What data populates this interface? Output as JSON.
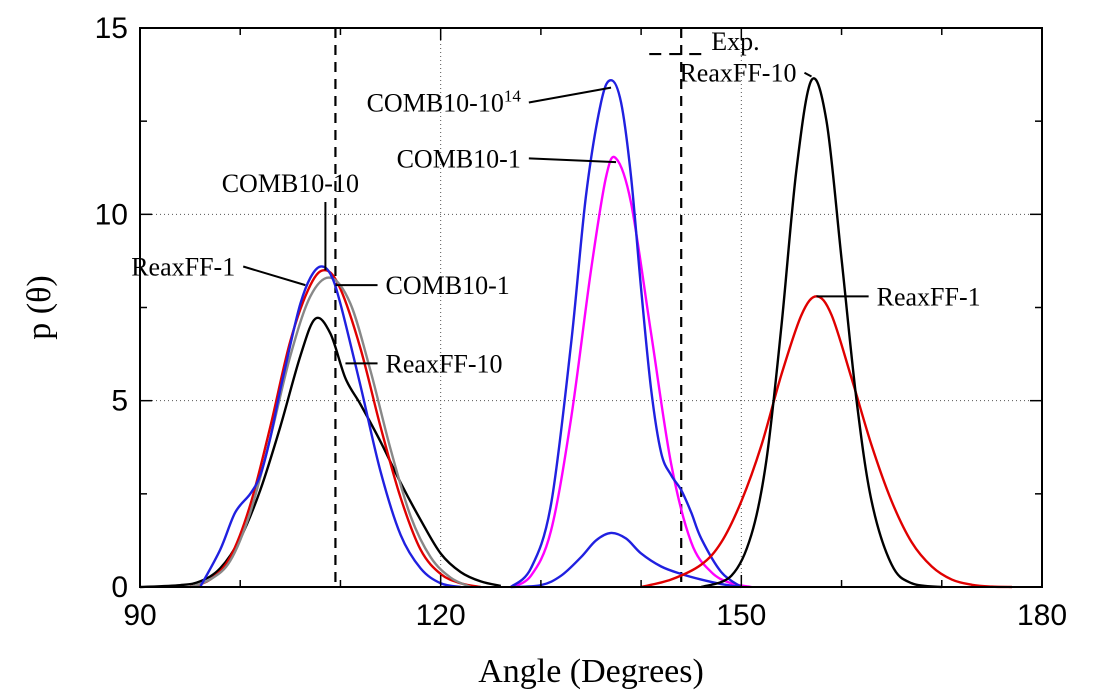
{
  "chart_data": {
    "type": "line",
    "title": "",
    "xlabel": "Angle (Degrees)",
    "ylabel": "p (θ)",
    "xlim": [
      90,
      180
    ],
    "ylim": [
      0,
      15
    ],
    "xticks": [
      90,
      120,
      150,
      180
    ],
    "yticks": [
      0,
      5,
      10,
      15
    ],
    "xtick_labels": [
      "90",
      "120",
      "150",
      "180"
    ],
    "ytick_labels": [
      "0",
      "5",
      "10",
      "15"
    ],
    "grid": true,
    "legend": {
      "placement": "top-right",
      "entries": [
        {
          "label": "Exp.",
          "style": "dashed",
          "color": "#000000"
        }
      ]
    },
    "reference_lines": [
      {
        "name": "Exp.",
        "x": 109.5
      },
      {
        "name": "Exp.",
        "x": 144
      }
    ],
    "series": [
      {
        "group": "ReaxFF-10",
        "color": "#000000",
        "x": [
          90,
          94,
          96,
          98,
          100,
          102,
          104,
          106,
          107.5,
          109,
          110.5,
          112,
          114,
          116,
          118,
          120,
          122,
          124,
          126
        ],
        "y": [
          0,
          0.05,
          0.15,
          0.5,
          1.3,
          2.6,
          4.3,
          6.2,
          7.2,
          6.8,
          5.6,
          4.9,
          3.9,
          2.8,
          1.8,
          0.9,
          0.4,
          0.15,
          0.03
        ]
      },
      {
        "group": "ReaxFF-1",
        "color": "#e00000",
        "x": [
          95,
          97,
          99,
          101,
          103,
          105,
          107,
          108.5,
          110,
          112,
          114,
          116,
          118,
          120,
          122,
          124
        ],
        "y": [
          0,
          0.2,
          0.8,
          2.2,
          4.3,
          6.6,
          8.1,
          8.5,
          8.0,
          6.4,
          4.3,
          2.4,
          1.0,
          0.35,
          0.1,
          0
        ]
      },
      {
        "group": "COMB10-1",
        "color": "#888888",
        "x": [
          95,
          97,
          99,
          101,
          103,
          105,
          107,
          109,
          111,
          113,
          115,
          117,
          119,
          121,
          123
        ],
        "y": [
          0,
          0.2,
          0.7,
          2.0,
          4.0,
          6.2,
          7.8,
          8.3,
          7.6,
          5.8,
          3.7,
          1.9,
          0.8,
          0.25,
          0
        ]
      },
      {
        "group": "COMB10-10",
        "color": "#2020e0",
        "x": [
          96,
          98,
          99.5,
          101,
          102,
          103,
          104,
          105,
          106,
          107,
          108,
          109,
          110,
          112,
          114,
          116,
          118,
          120,
          122
        ],
        "y": [
          0,
          1.0,
          2.0,
          2.5,
          3.0,
          4.0,
          5.3,
          6.5,
          7.6,
          8.3,
          8.6,
          8.4,
          7.6,
          5.4,
          3.1,
          1.4,
          0.5,
          0.1,
          0
        ]
      },
      {
        "group": "COMB10-1",
        "color": "#ff00ff",
        "x": [
          127,
          129,
          131,
          133,
          135,
          136.5,
          137.5,
          139,
          141,
          143,
          145,
          147,
          149,
          151
        ],
        "y": [
          0,
          0.3,
          1.5,
          4.5,
          8.5,
          11.0,
          11.5,
          10.3,
          6.8,
          3.3,
          1.2,
          0.4,
          0.1,
          0
        ]
      },
      {
        "group": "COMB10-10^14",
        "color": "#2020e0",
        "x": [
          127,
          129,
          131,
          133,
          134.5,
          136,
          137,
          138,
          139,
          140,
          141,
          142,
          143,
          144,
          145,
          146,
          148,
          150
        ],
        "y": [
          0,
          0.5,
          2.2,
          6.5,
          10.5,
          13.0,
          13.6,
          13.0,
          11.0,
          8.0,
          5.3,
          3.6,
          3.0,
          2.6,
          2.0,
          1.3,
          0.4,
          0
        ]
      },
      {
        "group": "",
        "color": "#2020e0",
        "x": [
          127,
          130,
          132,
          134,
          135.5,
          137,
          138.5,
          140,
          142,
          144,
          146,
          148,
          150
        ],
        "y": [
          0,
          0.05,
          0.3,
          0.8,
          1.25,
          1.45,
          1.3,
          0.9,
          0.55,
          0.35,
          0.2,
          0.08,
          0
        ]
      },
      {
        "group": "ReaxFF-1",
        "color": "#e00000",
        "x": [
          140,
          143,
          146,
          148,
          150,
          152,
          154,
          156,
          157.5,
          159,
          161,
          163,
          165,
          167,
          169,
          171,
          173,
          175,
          177
        ],
        "y": [
          0,
          0.2,
          0.6,
          1.2,
          2.3,
          3.8,
          5.7,
          7.3,
          7.8,
          7.3,
          5.6,
          3.8,
          2.3,
          1.2,
          0.55,
          0.2,
          0.06,
          0.01,
          0
        ]
      },
      {
        "group": "ReaxFF-10",
        "color": "#000000",
        "x": [
          146,
          149,
          151,
          152.5,
          154,
          155.5,
          157,
          158.5,
          160,
          161.5,
          163,
          165,
          167,
          170
        ],
        "y": [
          0,
          0.3,
          1.4,
          3.4,
          7.0,
          11.2,
          13.6,
          12.5,
          8.8,
          5.0,
          2.3,
          0.6,
          0.1,
          0
        ]
      }
    ],
    "annotations": [
      {
        "text": "Exp.",
        "label_x": 146,
        "label_y": 14.5
      },
      {
        "text": "COMB10-10",
        "sup": "14",
        "label_x": 128,
        "label_y": 13.0,
        "point_x": 137,
        "point_y": 13.4
      },
      {
        "text": "COMB10-1",
        "label_x": 128,
        "label_y": 11.5,
        "point_x": 137.5,
        "point_y": 11.4
      },
      {
        "text": "COMB10-10",
        "label_x": 105,
        "label_y": 10.6,
        "point_x": 108.5,
        "point_y": 8.5
      },
      {
        "text": "ReaxFF-1",
        "label_x": 99.5,
        "label_y": 8.6,
        "point_x": 106.5,
        "point_y": 8.1
      },
      {
        "text": "COMB10-1",
        "label_x": 114.5,
        "label_y": 8.1,
        "point_x": 109.5,
        "point_y": 8.1
      },
      {
        "text": "ReaxFF-10",
        "label_x": 114.5,
        "label_y": 6.0,
        "point_x": 110.5,
        "point_y": 6.0
      },
      {
        "text": "ReaxFF-10",
        "label_x": 155.5,
        "label_y": 13.8,
        "point_x": 157,
        "point_y": 13.7
      },
      {
        "text": "ReaxFF-1",
        "label_x": 163.5,
        "label_y": 7.8,
        "point_x": 157.5,
        "point_y": 7.8
      }
    ]
  }
}
